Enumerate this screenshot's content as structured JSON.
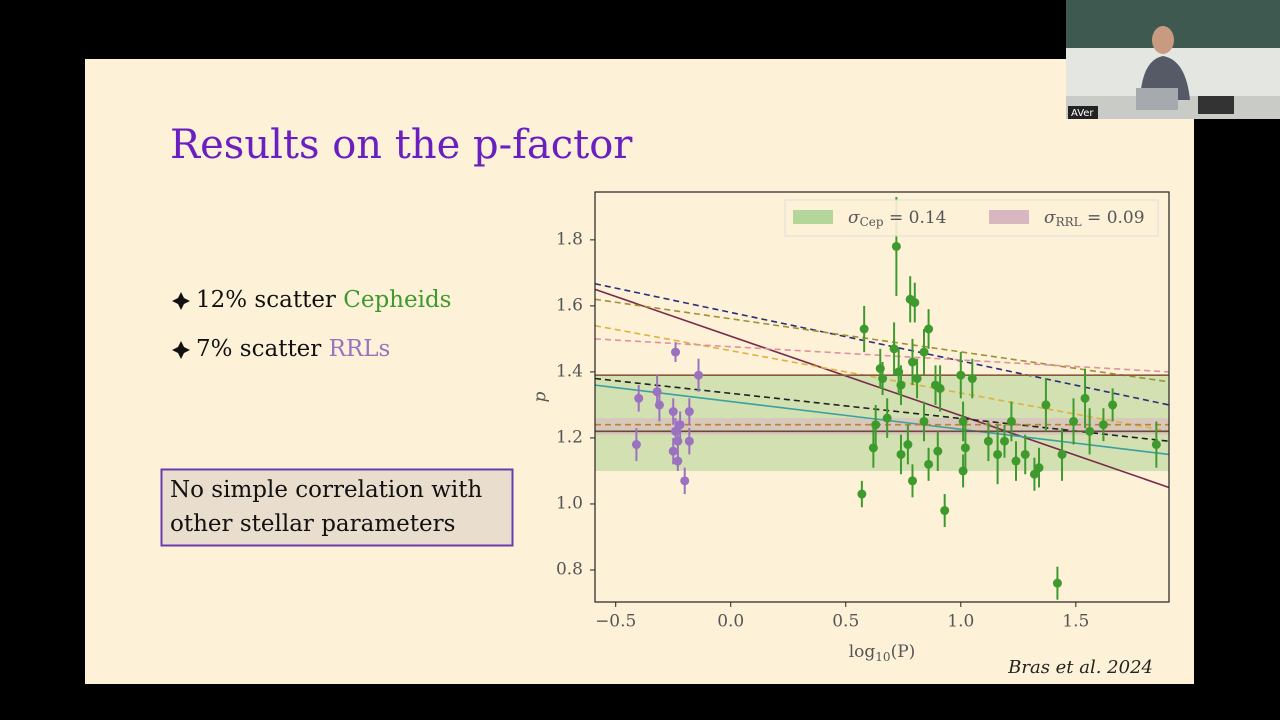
{
  "slide": {
    "title": "Results on the p-factor",
    "bullets": [
      {
        "text": "12% scatter ",
        "highlight": "Cepheids",
        "color": "#3f9a2e"
      },
      {
        "text": "7% scatter ",
        "highlight": "RRLs",
        "color": "#9a72c0"
      }
    ],
    "box_lines": [
      "No simple correlation with",
      "other stellar parameters"
    ],
    "source": "Bras et al. 2024",
    "camera_label": "AVer"
  },
  "chart_data": {
    "type": "scatter",
    "x_label": {
      "main": "log",
      "sub": "10",
      "rest": "(P)"
    },
    "y_label": "p",
    "xlim": [
      -0.59,
      1.905
    ],
    "ylim": [
      0.703,
      1.945
    ],
    "xticks": [
      {
        "value": -0.5,
        "label": "−0.5"
      },
      {
        "value": 0,
        "label": "0.0"
      },
      0.5,
      {
        "value": 1,
        "label": "1.0"
      },
      1.5
    ],
    "yticks": [
      0.8,
      {
        "value": 1,
        "label": "1.0"
      },
      1.2,
      1.4,
      1.6,
      1.8
    ],
    "bands": [
      {
        "symbol": "σ",
        "sub": "Cep",
        "label": " = 0.14",
        "color": "#b5d69a",
        "range": [
          1.1,
          1.39
        ]
      },
      {
        "symbol": "σ",
        "sub": "RRL",
        "label": " = 0.09",
        "color": "#d8b7c0",
        "range": [
          1.21,
          1.26
        ]
      }
    ],
    "fits": [
      {
        "color": "#2b2f7a",
        "dash": true,
        "x": [
          -0.59,
          1.905
        ],
        "values": [
          1.667,
          1.3
        ]
      },
      {
        "color": "#7a2a4a",
        "dash": false,
        "x": [
          -0.59,
          1.905
        ],
        "values": [
          1.65,
          1.05
        ]
      },
      {
        "color": "#a09030",
        "dash": true,
        "x": [
          -0.59,
          1.905
        ],
        "values": [
          1.62,
          1.37
        ]
      },
      {
        "color": "#e0b040",
        "dash": true,
        "x": [
          -0.59,
          1.905
        ],
        "values": [
          1.54,
          1.22
        ]
      },
      {
        "color": "#222222",
        "dash": true,
        "x": [
          -0.59,
          1.905
        ],
        "values": [
          1.38,
          1.19
        ]
      },
      {
        "color": "#3aa0a0",
        "dash": false,
        "x": [
          -0.59,
          1.905
        ],
        "values": [
          1.36,
          1.15
        ]
      },
      {
        "color": "#8a5a3a",
        "dash": false,
        "x": [
          -0.59,
          1.905
        ],
        "values": [
          1.39,
          1.39
        ]
      },
      {
        "color": "#c08030",
        "dash": true,
        "x": [
          -0.59,
          1.905
        ],
        "values": [
          1.24,
          1.24
        ]
      },
      {
        "color": "#6a4a3a",
        "dash": false,
        "x": [
          -0.59,
          1.905
        ],
        "values": [
          1.22,
          1.22
        ]
      },
      {
        "color": "#e090a0",
        "dash": true,
        "x": [
          -0.59,
          1.905
        ],
        "values": [
          1.5,
          1.4
        ]
      }
    ],
    "series": [
      {
        "color": "#3f9a2e",
        "x": [
          0.58,
          0.57,
          0.72,
          0.65,
          0.66,
          0.71,
          0.73,
          0.74,
          0.78,
          0.8,
          0.84,
          0.86,
          0.79,
          0.81,
          0.79,
          0.77,
          0.84,
          0.89,
          0.91,
          0.93,
          0.9,
          0.86,
          1.0,
          1.05,
          1.01,
          1.02,
          1.01,
          1.12,
          1.16,
          1.19,
          1.22,
          1.24,
          1.28,
          1.32,
          1.34,
          1.37,
          1.44,
          1.42,
          1.49,
          1.54,
          1.56,
          1.62,
          1.66,
          1.85,
          0.62,
          0.63,
          0.74,
          0.68
        ],
        "values": [
          1.53,
          1.03,
          1.78,
          1.41,
          1.38,
          1.47,
          1.4,
          1.36,
          1.62,
          1.61,
          1.46,
          1.53,
          1.43,
          1.38,
          1.07,
          1.18,
          1.25,
          1.36,
          1.35,
          0.98,
          1.16,
          1.12,
          1.39,
          1.38,
          1.25,
          1.17,
          1.1,
          1.19,
          1.15,
          1.19,
          1.25,
          1.13,
          1.15,
          1.09,
          1.11,
          1.3,
          1.15,
          0.76,
          1.25,
          1.32,
          1.22,
          1.24,
          1.3,
          1.18,
          1.17,
          1.24,
          1.15,
          1.26
        ],
        "errors": [
          0.07,
          0.04,
          0.15,
          0.06,
          0.05,
          0.08,
          0.07,
          0.06,
          0.07,
          0.06,
          0.07,
          0.06,
          0.07,
          0.06,
          0.05,
          0.06,
          0.06,
          0.06,
          0.07,
          0.05,
          0.06,
          0.05,
          0.07,
          0.06,
          0.06,
          0.07,
          0.05,
          0.06,
          0.09,
          0.05,
          0.06,
          0.06,
          0.06,
          0.05,
          0.06,
          0.08,
          0.08,
          0.05,
          0.07,
          0.09,
          0.07,
          0.05,
          0.05,
          0.07,
          0.06,
          0.06,
          0.06,
          0.06
        ]
      },
      {
        "color": "#9a72c0",
        "x": [
          -0.4,
          -0.41,
          -0.32,
          -0.31,
          -0.24,
          -0.25,
          -0.24,
          -0.22,
          -0.23,
          -0.25,
          -0.23,
          -0.2,
          -0.18,
          -0.18,
          -0.14
        ],
        "values": [
          1.32,
          1.18,
          1.34,
          1.3,
          1.46,
          1.28,
          1.22,
          1.24,
          1.19,
          1.16,
          1.13,
          1.07,
          1.19,
          1.28,
          1.39
        ],
        "errors": [
          0.04,
          0.05,
          0.05,
          0.05,
          0.03,
          0.04,
          0.04,
          0.04,
          0.04,
          0.04,
          0.03,
          0.04,
          0.04,
          0.04,
          0.05
        ]
      }
    ]
  }
}
